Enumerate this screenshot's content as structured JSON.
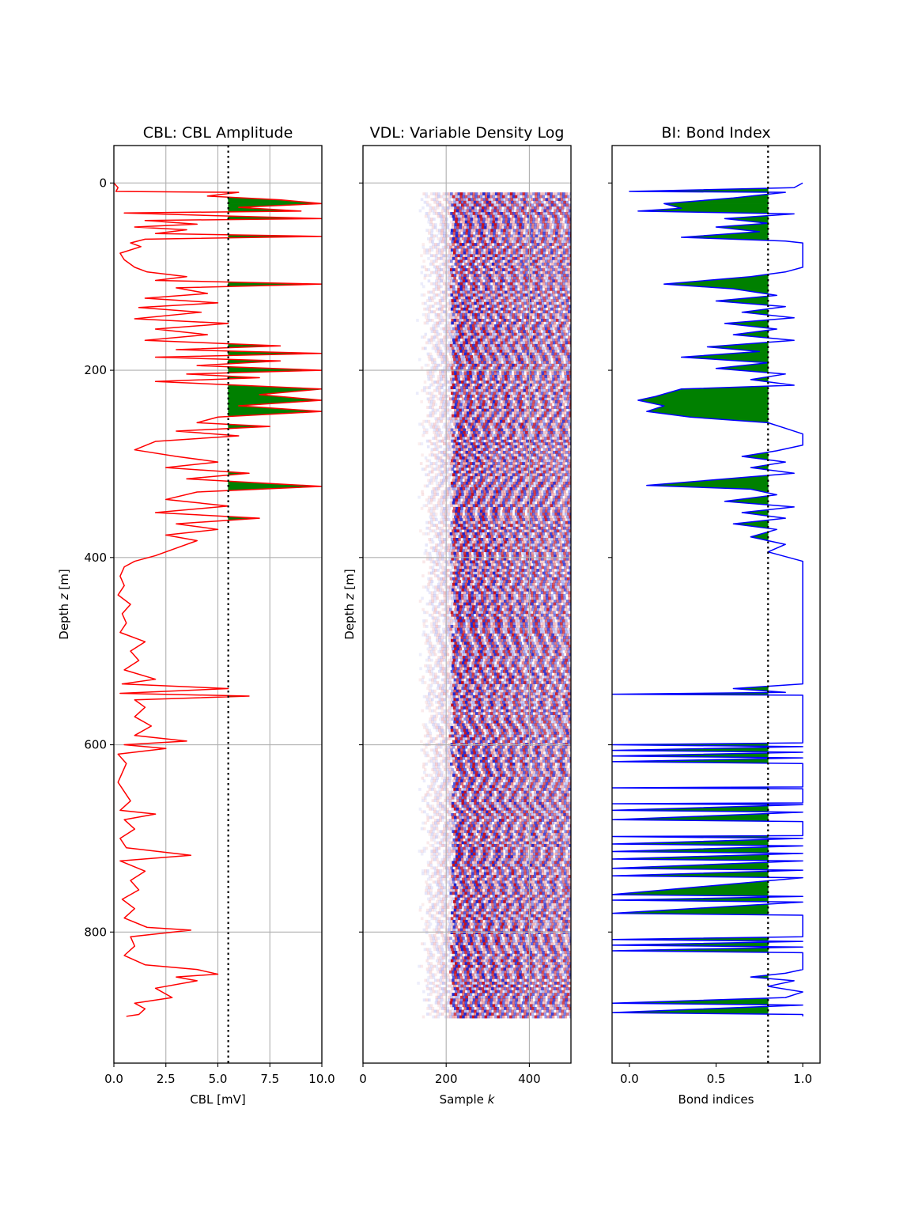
{
  "chart_data": [
    {
      "type": "line",
      "title": "CBL: CBL Amplitude",
      "xlabel": "CBL [mV]",
      "ylabel": "Depth z [m]",
      "xlim": [
        0,
        10
      ],
      "ylim": [
        940,
        -40
      ],
      "xticks": [
        "0.0",
        "2.5",
        "5.0",
        "7.5",
        "10.0"
      ],
      "yticks": [
        "0",
        "200",
        "400",
        "600",
        "800"
      ],
      "grid": true,
      "threshold": 5.5,
      "series": [
        {
          "color": "#ff0000",
          "points": [
            [
              0.0,
              0
            ],
            [
              0.2,
              5
            ],
            [
              0.1,
              9
            ],
            [
              6.0,
              10
            ],
            [
              4.5,
              14
            ],
            [
              8.0,
              18
            ],
            [
              10.0,
              22
            ],
            [
              6.0,
              26
            ],
            [
              9.0,
              30
            ],
            [
              0.5,
              32
            ],
            [
              5.0,
              35
            ],
            [
              10.0,
              38
            ],
            [
              1.5,
              40
            ],
            [
              4.0,
              44
            ],
            [
              1.0,
              47
            ],
            [
              3.5,
              50
            ],
            [
              2.0,
              54
            ],
            [
              10.0,
              57
            ],
            [
              1.5,
              60
            ],
            [
              0.8,
              64
            ],
            [
              1.3,
              68
            ],
            [
              0.3,
              75
            ],
            [
              0.5,
              82
            ],
            [
              1.0,
              90
            ],
            [
              1.6,
              95
            ],
            [
              3.5,
              100
            ],
            [
              2.0,
              104
            ],
            [
              10.0,
              108
            ],
            [
              3.0,
              112
            ],
            [
              4.5,
              118
            ],
            [
              1.5,
              123
            ],
            [
              5.0,
              128
            ],
            [
              1.2,
              133
            ],
            [
              4.2,
              138
            ],
            [
              1.0,
              145
            ],
            [
              5.5,
              150
            ],
            [
              2.0,
              156
            ],
            [
              4.5,
              162
            ],
            [
              1.5,
              168
            ],
            [
              8.0,
              174
            ],
            [
              3.0,
              178
            ],
            [
              10.0,
              182
            ],
            [
              2.0,
              186
            ],
            [
              8.0,
              190
            ],
            [
              4.0,
              195
            ],
            [
              10.0,
              200
            ],
            [
              3.5,
              204
            ],
            [
              7.0,
              208
            ],
            [
              2.0,
              212
            ],
            [
              6.0,
              216
            ],
            [
              10.0,
              220
            ],
            [
              7.0,
              226
            ],
            [
              10.0,
              232
            ],
            [
              6.0,
              238
            ],
            [
              10.0,
              244
            ],
            [
              5.0,
              250
            ],
            [
              4.0,
              256
            ],
            [
              7.5,
              260
            ],
            [
              3.0,
              265
            ],
            [
              6.0,
              270
            ],
            [
              2.0,
              276
            ],
            [
              1.0,
              285
            ],
            [
              3.0,
              292
            ],
            [
              5.0,
              298
            ],
            [
              2.5,
              304
            ],
            [
              6.5,
              310
            ],
            [
              3.5,
              316
            ],
            [
              10.0,
              324
            ],
            [
              4.0,
              330
            ],
            [
              2.5,
              338
            ],
            [
              5.5,
              345
            ],
            [
              2.0,
              352
            ],
            [
              7.0,
              358
            ],
            [
              3.0,
              364
            ],
            [
              5.0,
              370
            ],
            [
              2.5,
              376
            ],
            [
              4.0,
              382
            ],
            [
              3.0,
              390
            ],
            [
              2.0,
              398
            ],
            [
              1.0,
              404
            ],
            [
              0.5,
              410
            ],
            [
              0.3,
              420
            ],
            [
              0.5,
              430
            ],
            [
              0.2,
              440
            ],
            [
              0.8,
              450
            ],
            [
              0.4,
              460
            ],
            [
              0.6,
              470
            ],
            [
              0.3,
              480
            ],
            [
              1.5,
              490
            ],
            [
              0.8,
              500
            ],
            [
              1.2,
              510
            ],
            [
              0.5,
              520
            ],
            [
              2.0,
              530
            ],
            [
              0.4,
              535
            ],
            [
              5.5,
              540
            ],
            [
              0.3,
              545
            ],
            [
              6.5,
              548
            ],
            [
              1.0,
              552
            ],
            [
              1.5,
              560
            ],
            [
              1.0,
              570
            ],
            [
              1.8,
              580
            ],
            [
              1.0,
              590
            ],
            [
              3.5,
              596
            ],
            [
              0.5,
              600
            ],
            [
              2.5,
              604
            ],
            [
              0.2,
              610
            ],
            [
              0.6,
              620
            ],
            [
              0.2,
              640
            ],
            [
              0.8,
              660
            ],
            [
              0.3,
              670
            ],
            [
              2.0,
              674
            ],
            [
              0.5,
              680
            ],
            [
              1.0,
              690
            ],
            [
              0.3,
              700
            ],
            [
              0.6,
              710
            ],
            [
              3.7,
              718
            ],
            [
              0.3,
              724
            ],
            [
              1.5,
              735
            ],
            [
              0.8,
              745
            ],
            [
              1.2,
              755
            ],
            [
              0.4,
              765
            ],
            [
              1.0,
              775
            ],
            [
              0.5,
              785
            ],
            [
              1.6,
              795
            ],
            [
              3.7,
              798
            ],
            [
              0.8,
              805
            ],
            [
              1.0,
              815
            ],
            [
              0.5,
              825
            ],
            [
              1.5,
              835
            ],
            [
              4.0,
              840
            ],
            [
              5.0,
              845
            ],
            [
              3.0,
              848
            ],
            [
              4.0,
              852
            ],
            [
              2.0,
              860
            ],
            [
              2.8,
              870
            ],
            [
              1.0,
              876
            ],
            [
              1.5,
              882
            ],
            [
              1.2,
              888
            ],
            [
              0.6,
              890
            ]
          ]
        }
      ]
    },
    {
      "type": "heatmap",
      "title": "VDL: Variable Density Log",
      "xlabel": "Sample k",
      "ylabel": "Depth z [m]",
      "xlim": [
        0,
        500
      ],
      "ylim": [
        940,
        -40
      ],
      "xticks": [
        "0",
        "200",
        "400"
      ],
      "grid": true,
      "depth_range": [
        10,
        890
      ],
      "colors": {
        "positive": "#c8141e",
        "negative": "#1e28d2",
        "zero": "#ffffff"
      }
    },
    {
      "type": "line",
      "title": "BI: Bond Index",
      "xlabel": "Bond indices",
      "ylabel": "",
      "xlim": [
        -0.1,
        1.1
      ],
      "ylim": [
        940,
        -40
      ],
      "xticks": [
        "0.0",
        "0.5",
        "1.0"
      ],
      "grid": false,
      "threshold": 0.8,
      "series": [
        {
          "color": "#0000ff",
          "points": [
            [
              1.0,
              0
            ],
            [
              0.95,
              5
            ],
            [
              0.0,
              9
            ],
            [
              0.9,
              10
            ],
            [
              0.6,
              16
            ],
            [
              0.2,
              22
            ],
            [
              0.3,
              27
            ],
            [
              0.05,
              30
            ],
            [
              0.95,
              33
            ],
            [
              0.55,
              38
            ],
            [
              0.8,
              43
            ],
            [
              0.5,
              47
            ],
            [
              0.75,
              52
            ],
            [
              0.3,
              58
            ],
            [
              0.9,
              62
            ],
            [
              1.0,
              64
            ],
            [
              1.0,
              90
            ],
            [
              0.9,
              95
            ],
            [
              0.7,
              100
            ],
            [
              0.2,
              108
            ],
            [
              0.6,
              113
            ],
            [
              0.85,
              120
            ],
            [
              0.5,
              126
            ],
            [
              0.9,
              132
            ],
            [
              0.65,
              138
            ],
            [
              0.95,
              144
            ],
            [
              0.55,
              150
            ],
            [
              0.85,
              156
            ],
            [
              0.6,
              162
            ],
            [
              0.95,
              168
            ],
            [
              0.45,
              175
            ],
            [
              0.75,
              180
            ],
            [
              0.3,
              186
            ],
            [
              0.8,
              192
            ],
            [
              0.5,
              198
            ],
            [
              0.9,
              204
            ],
            [
              0.7,
              210
            ],
            [
              0.95,
              216
            ],
            [
              0.3,
              220
            ],
            [
              0.15,
              228
            ],
            [
              0.05,
              232
            ],
            [
              0.2,
              238
            ],
            [
              0.1,
              244
            ],
            [
              0.35,
              250
            ],
            [
              0.8,
              256
            ],
            [
              0.9,
              262
            ],
            [
              1.0,
              268
            ],
            [
              1.0,
              280
            ],
            [
              0.85,
              286
            ],
            [
              0.65,
              292
            ],
            [
              0.9,
              298
            ],
            [
              0.7,
              304
            ],
            [
              0.95,
              310
            ],
            [
              0.1,
              323
            ],
            [
              0.7,
              327
            ],
            [
              0.85,
              333
            ],
            [
              0.55,
              340
            ],
            [
              0.95,
              346
            ],
            [
              0.65,
              352
            ],
            [
              0.9,
              358
            ],
            [
              0.6,
              364
            ],
            [
              0.85,
              370
            ],
            [
              0.7,
              378
            ],
            [
              0.9,
              386
            ],
            [
              0.8,
              394
            ],
            [
              1.0,
              404
            ],
            [
              1.0,
              535
            ],
            [
              0.6,
              540
            ],
            [
              0.9,
              544
            ],
            [
              -0.1,
              546
            ],
            [
              1.0,
              547
            ],
            [
              1.0,
              598
            ],
            [
              -0.1,
              600
            ],
            [
              1.0,
              602
            ],
            [
              -0.1,
              606
            ],
            [
              1.0,
              608
            ],
            [
              -0.1,
              612
            ],
            [
              1.0,
              614
            ],
            [
              -0.1,
              618
            ],
            [
              1.0,
              620
            ],
            [
              1.0,
              645
            ],
            [
              -0.1,
              646
            ],
            [
              1.0,
              647
            ],
            [
              1.0,
              662
            ],
            [
              -0.1,
              663
            ],
            [
              1.0,
              664
            ],
            [
              -0.1,
              670
            ],
            [
              1.0,
              672
            ],
            [
              -0.1,
              680
            ],
            [
              1.0,
              682
            ],
            [
              1.0,
              697
            ],
            [
              -0.1,
              698
            ],
            [
              1.0,
              700
            ],
            [
              -0.1,
              706
            ],
            [
              1.0,
              708
            ],
            [
              -0.1,
              714
            ],
            [
              1.0,
              716
            ],
            [
              -0.1,
              722
            ],
            [
              1.0,
              724
            ],
            [
              -0.1,
              732
            ],
            [
              1.0,
              734
            ],
            [
              -0.1,
              740
            ],
            [
              1.0,
              742
            ],
            [
              -0.1,
              760
            ],
            [
              1.0,
              762
            ],
            [
              -0.1,
              766
            ],
            [
              1.0,
              768
            ],
            [
              -0.1,
              780
            ],
            [
              1.0,
              782
            ],
            [
              1.0,
              805
            ],
            [
              -0.1,
              808
            ],
            [
              1.0,
              810
            ],
            [
              -0.1,
              814
            ],
            [
              1.0,
              816
            ],
            [
              -0.1,
              820
            ],
            [
              1.0,
              822
            ],
            [
              1.0,
              840
            ],
            [
              0.9,
              844
            ],
            [
              0.7,
              848
            ],
            [
              0.95,
              852
            ],
            [
              0.8,
              858
            ],
            [
              1.0,
              864
            ],
            [
              0.9,
              870
            ],
            [
              -0.1,
              876
            ],
            [
              1.0,
              878
            ],
            [
              -0.1,
              886
            ],
            [
              1.0,
              888
            ],
            [
              1.0,
              890
            ]
          ]
        }
      ]
    }
  ]
}
